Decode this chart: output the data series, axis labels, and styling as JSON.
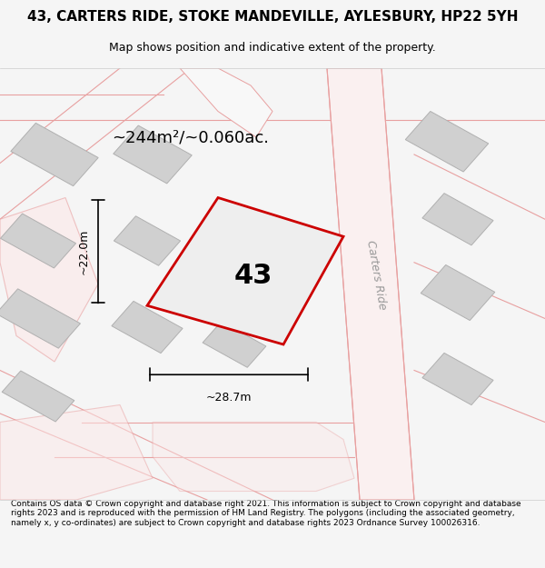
{
  "title": "43, CARTERS RIDE, STOKE MANDEVILLE, AYLESBURY, HP22 5YH",
  "subtitle": "Map shows position and indicative extent of the property.",
  "area_text": "~244m²/~0.060ac.",
  "label_43": "43",
  "dim_width": "~28.7m",
  "dim_height": "~22.0m",
  "road_label": "Carters Ride",
  "footer": "Contains OS data © Crown copyright and database right 2021. This information is subject to Crown copyright and database rights 2023 and is reproduced with the permission of HM Land Registry. The polygons (including the associated geometry, namely x, y co-ordinates) are subject to Crown copyright and database rights 2023 Ordnance Survey 100026316.",
  "bg_color": "#f5f5f5",
  "map_bg": "#ffffff",
  "plot_edge_color": "#cc0000",
  "building_fill": "#d0d0d0",
  "building_edge": "#b0b0b0",
  "pink_line_color": "#e8a0a0"
}
